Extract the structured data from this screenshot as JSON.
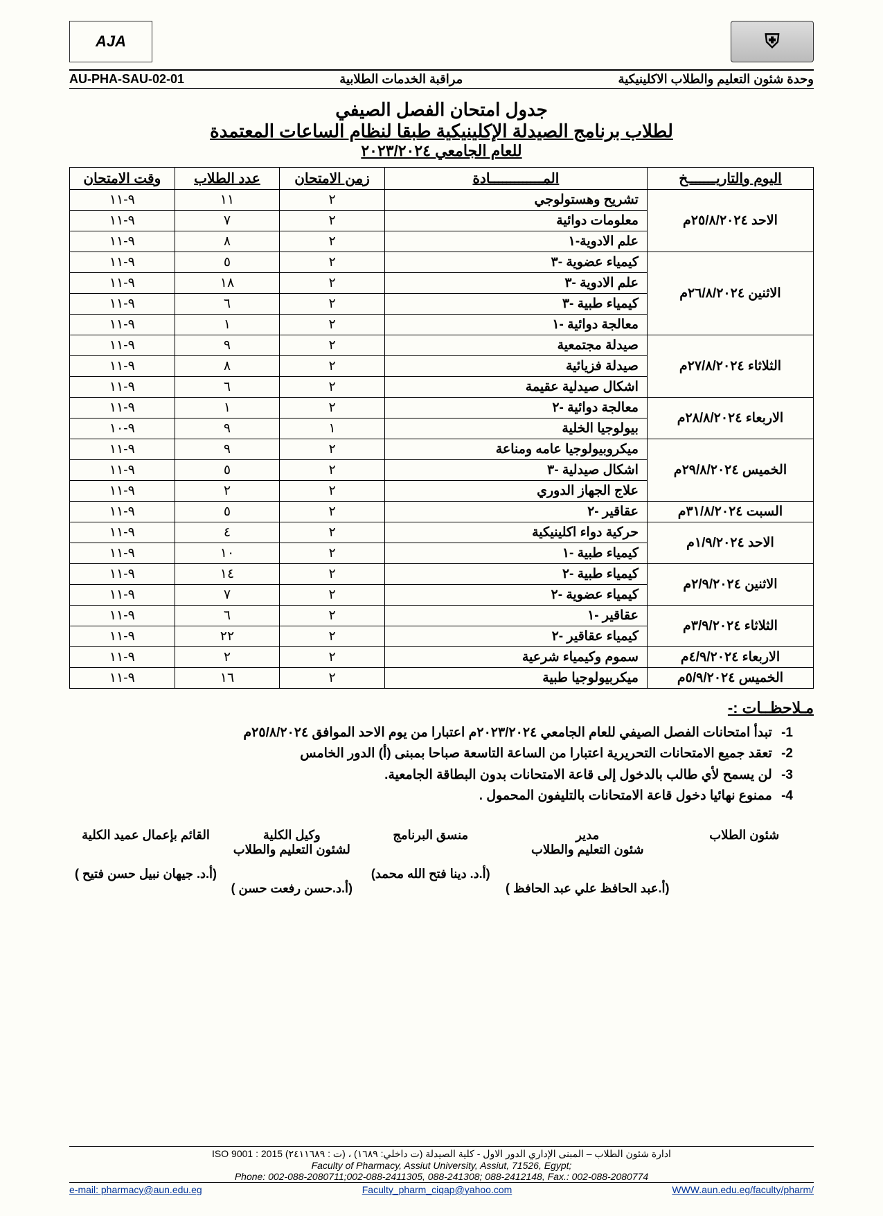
{
  "header": {
    "logo_right_text": "AJA",
    "logo_left_text": "⛨",
    "unit_right": "وحدة شئون التعليم والطلاب  الاكلينيكية",
    "unit_center": "مراقبة الخدمات الطلابية",
    "unit_left": "AU-PHA-SAU-02-01"
  },
  "title": {
    "line1": "جدول امتحان الفصل الصيفي",
    "line2": "لطلاب برنامج الصيدلة الإكلينيكية طبقا لنظام الساعات المعتمدة",
    "line3": "للعام الجامعي ٢٠٢٣/٢٠٢٤"
  },
  "table": {
    "headers": {
      "date": "اليوم والتاريـــــــخ",
      "subject": "المـــــــــــــادة",
      "duration": "زمن الامتحان",
      "count": "عدد الطلاب",
      "time": "وقت الامتحان"
    },
    "groups": [
      {
        "date": "الاحد ٢٥/٨/٢٠٢٤م",
        "rows": [
          {
            "subject": "تشريح وهستولوجي",
            "duration": "٢",
            "count": "١١",
            "time": "٩-١١"
          },
          {
            "subject": "معلومات دوائية",
            "duration": "٢",
            "count": "٧",
            "time": "٩-١١"
          },
          {
            "subject": "علم الادوية-١",
            "duration": "٢",
            "count": "٨",
            "time": "٩-١١"
          }
        ]
      },
      {
        "date": "الاثنين ٢٦/٨/٢٠٢٤م",
        "rows": [
          {
            "subject": "كيمياء عضوية -٣",
            "duration": "٢",
            "count": "٥",
            "time": "٩-١١"
          },
          {
            "subject": "علم الادوية -٣",
            "duration": "٢",
            "count": "١٨",
            "time": "٩-١١"
          },
          {
            "subject": "كيمياء طبية -٣",
            "duration": "٢",
            "count": "٦",
            "time": "٩-١١"
          },
          {
            "subject": "معالجة دوائية -١",
            "duration": "٢",
            "count": "١",
            "time": "٩-١١"
          }
        ]
      },
      {
        "date": "الثلاثاء ٢٧/٨/٢٠٢٤م",
        "rows": [
          {
            "subject": "صيدلة مجتمعية",
            "duration": "٢",
            "count": "٩",
            "time": "٩-١١"
          },
          {
            "subject": "صيدلة فزيائية",
            "duration": "٢",
            "count": "٨",
            "time": "٩-١١"
          },
          {
            "subject": "اشكال صيدلية عقيمة",
            "duration": "٢",
            "count": "٦",
            "time": "٩-١١"
          }
        ]
      },
      {
        "date": "الاربعاء ٢٨/٨/٢٠٢٤م",
        "rows": [
          {
            "subject": "معالجة دوائية -٢",
            "duration": "٢",
            "count": "١",
            "time": "٩-١١"
          },
          {
            "subject": "بيولوجيا الخلية",
            "duration": "١",
            "count": "٩",
            "time": "٩-١٠"
          }
        ]
      },
      {
        "date": "الخميس ٢٩/٨/٢٠٢٤م",
        "rows": [
          {
            "subject": "ميكروبيولوجيا عامه ومناعة",
            "duration": "٢",
            "count": "٩",
            "time": "٩-١١"
          },
          {
            "subject": "اشكال صيدلية -٣",
            "duration": "٢",
            "count": "٥",
            "time": "٩-١١"
          },
          {
            "subject": "علاج الجهاز الدوري",
            "duration": "٢",
            "count": "٢",
            "time": "٩-١١"
          }
        ]
      },
      {
        "date": "السبت ٣١/٨/٢٠٢٤م",
        "rows": [
          {
            "subject": "عقاقير -٢",
            "duration": "٢",
            "count": "٥",
            "time": "٩-١١"
          }
        ]
      },
      {
        "date": "الاحد ١/٩/٢٠٢٤م",
        "rows": [
          {
            "subject": "حركية دواء اكلينيكية",
            "duration": "٢",
            "count": "٤",
            "time": "٩-١١"
          },
          {
            "subject": "كيمياء طبية -١",
            "duration": "٢",
            "count": "١٠",
            "time": "٩-١١"
          }
        ]
      },
      {
        "date": "الاثنين ٢/٩/٢٠٢٤م",
        "rows": [
          {
            "subject": "كيمياء طبية -٢",
            "duration": "٢",
            "count": "١٤",
            "time": "٩-١١"
          },
          {
            "subject": "كيمياء عضوية -٢",
            "duration": "٢",
            "count": "٧",
            "time": "٩-١١"
          }
        ]
      },
      {
        "date": "الثلاثاء ٣/٩/٢٠٢٤م",
        "rows": [
          {
            "subject": "عقاقير -١",
            "duration": "٢",
            "count": "٦",
            "time": "٩-١١"
          },
          {
            "subject": "كيمياء عقاقير -٢",
            "duration": "٢",
            "count": "٢٢",
            "time": "٩-١١"
          }
        ]
      },
      {
        "date": "الاربعاء ٤/٩/٢٠٢٤م",
        "rows": [
          {
            "subject": "سموم وكيمياء شرعية",
            "duration": "٢",
            "count": "٢",
            "time": "٩-١١"
          }
        ]
      },
      {
        "date": "الخميس ٥/٩/٢٠٢٤م",
        "rows": [
          {
            "subject": "ميكربيولوجيا طبية",
            "duration": "٢",
            "count": "١٦",
            "time": "٩-١١"
          }
        ]
      }
    ]
  },
  "notes": {
    "title": "مـلاحظــات :-",
    "items": [
      "تبدأ امتحانات الفصل الصيفي للعام الجامعي ٢٠٢٣/٢٠٢٤م اعتبارا من يوم الاحد الموافق ٢٥/٨/٢٠٢٤م",
      "تعقد جميع الامتحانات التحريرية اعتبارا من الساعة التاسعة صباحا بمبنى (أ) الدور الخامس",
      "لن يسمح لأي طالب بالدخول إلى قاعة الامتحانات بدون البطاقة الجامعية.",
      "ممنوع نهائيا دخول قاعة الامتحانات بالتليفون المحمول ."
    ]
  },
  "signatures": [
    {
      "title": "شئون الطلاب",
      "name": ""
    },
    {
      "title": "مدير\nشئون التعليم والطلاب",
      "name": "(أ.عبد الحافظ علي عبد الحافظ )"
    },
    {
      "title": "منسق البرنامج",
      "name": "(أ.د. دينا فتح الله محمد)"
    },
    {
      "title": "وكيل الكلية\nلشئون التعليم والطلاب",
      "name": "(أ.د.حسن رفعت حسن )"
    },
    {
      "title": "القائم بإعمال عميد الكلية",
      "name": "(أ.د. جيهان نبيل حسن فتيح )"
    }
  ],
  "footer": {
    "line1_ar": "ادارة شئون الطلاب – المبنى الإداري الدور الاول - كلية الصيدلة (ت داخلي: ١٦٨٩) ، (ت : ٢٤١١٦٨٩) ISO 9001 : 2015",
    "line2": "Faculty of Pharmacy, Assiut University, Assiut, 71526, Egypt;",
    "line3": "Phone: 002-088-2080711;002-088-2411305, 088-241308; 088-2412148, Fax.: 002-088-2080774",
    "email": "e-mail: pharmacy@aun.edu.eg",
    "email2": "Faculty_pharm_ciqap@yahoo.com",
    "web": "WWW.aun.edu.eg/faculty/pharm/"
  }
}
